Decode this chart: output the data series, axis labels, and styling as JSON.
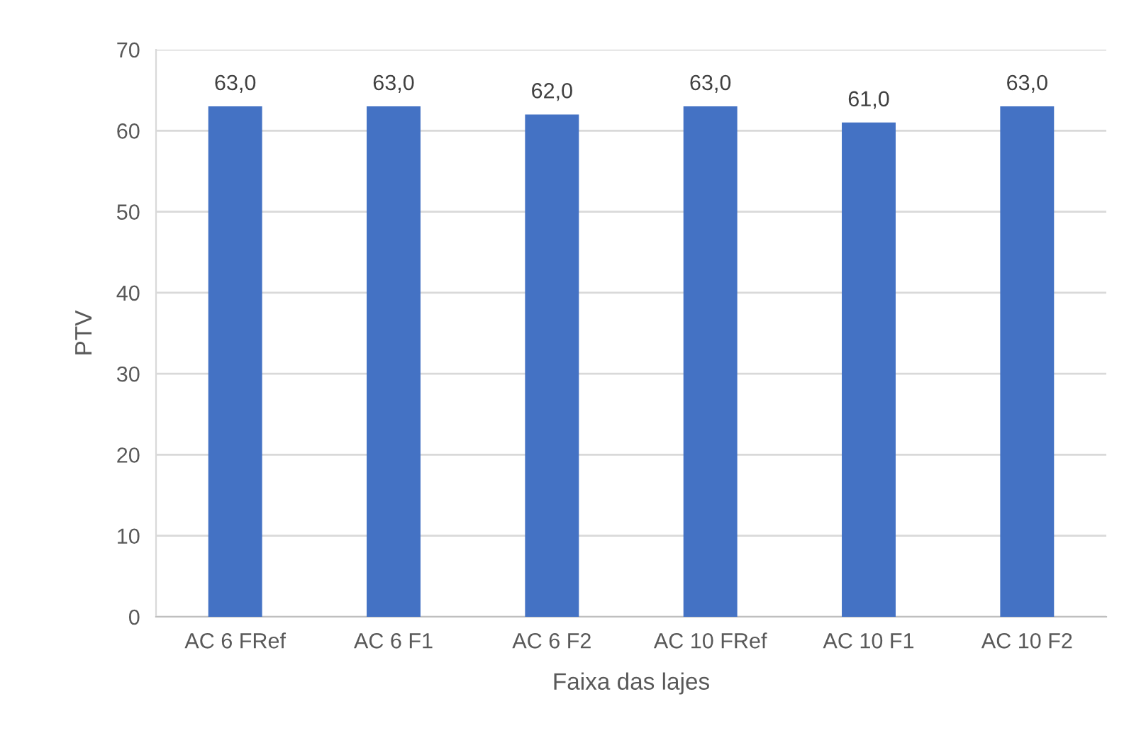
{
  "chart_data": {
    "type": "bar",
    "xlabel": "Faixa das lajes",
    "ylabel": "PTV",
    "categories": [
      "AC 6 FRef",
      "AC 6 F1",
      "AC 6 F2",
      "AC 10 FRef",
      "AC 10 F1",
      "AC 10 F2"
    ],
    "values": [
      63,
      63,
      62,
      63,
      61,
      63
    ],
    "value_labels": [
      "63,0",
      "63,0",
      "62,0",
      "63,0",
      "61,0",
      "63,0"
    ],
    "color": "#4472c4",
    "ylim": [
      0,
      70
    ],
    "yticks": [
      0,
      10,
      20,
      30,
      40,
      50,
      60,
      70
    ],
    "grid": "y"
  }
}
